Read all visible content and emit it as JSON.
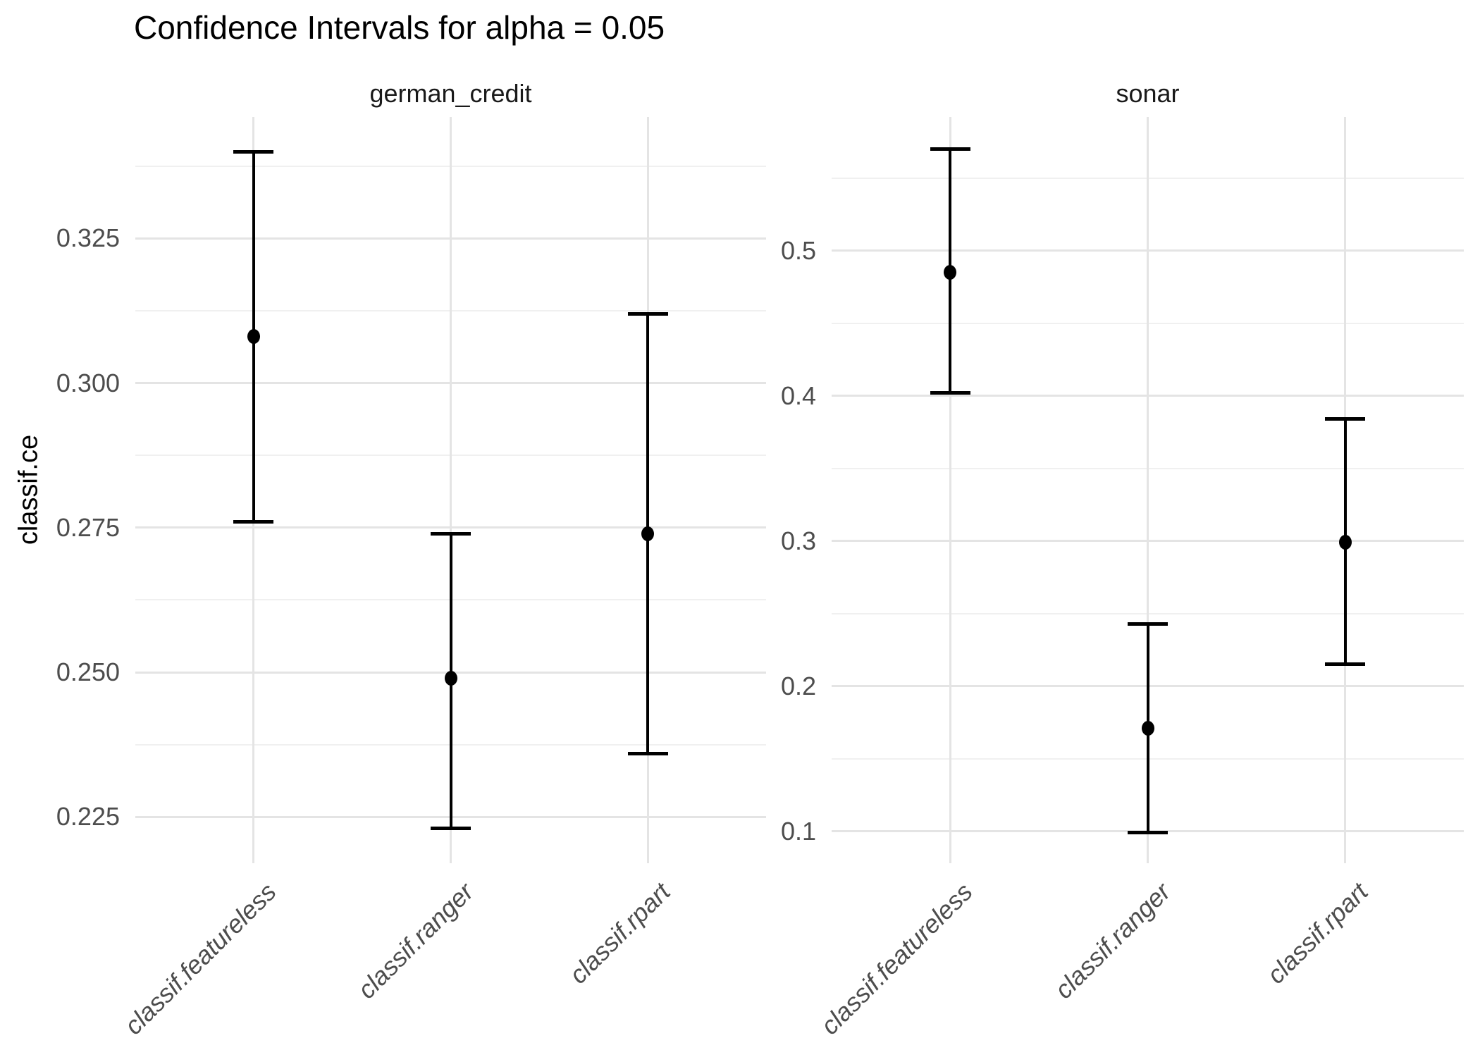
{
  "title": "Confidence Intervals for alpha = 0.05",
  "y_axis_title": "classif.ce",
  "colors": {
    "point_and_errorbar": "#000000",
    "grid_major": "#E4E4E4",
    "grid_minor": "#F0F0F0",
    "tick_label": "#4D4D4D",
    "strip_label": "#1A1A1A",
    "background": "#FFFFFF"
  },
  "chart_data": {
    "type": "errorbar",
    "title": "Confidence Intervals for alpha = 0.05",
    "xlabel": "",
    "ylabel": "classif.ce",
    "legend": "none",
    "grid": true,
    "facet_layout": "two panels side by side, free y scales",
    "categories": [
      "classif.featureless",
      "classif.ranger",
      "classif.rpart"
    ],
    "facets": [
      {
        "label": "german_credit",
        "ylim": [
          0.217,
          0.346
        ],
        "yticks": [
          {
            "value": 0.225,
            "label": "0.225"
          },
          {
            "value": 0.25,
            "label": "0.250"
          },
          {
            "value": 0.275,
            "label": "0.275"
          },
          {
            "value": 0.3,
            "label": "0.300"
          },
          {
            "value": 0.325,
            "label": "0.325"
          }
        ],
        "yticks_minor": [
          0.2375,
          0.2625,
          0.2875,
          0.3125,
          0.3375
        ],
        "series": [
          {
            "learner": "classif.featureless",
            "estimate": 0.308,
            "lower": 0.276,
            "upper": 0.34
          },
          {
            "learner": "classif.ranger",
            "estimate": 0.249,
            "lower": 0.223,
            "upper": 0.274
          },
          {
            "learner": "classif.rpart",
            "estimate": 0.274,
            "lower": 0.236,
            "upper": 0.312
          }
        ]
      },
      {
        "label": "sonar",
        "ylim": [
          0.078,
          0.592
        ],
        "yticks": [
          {
            "value": 0.1,
            "label": "0.1"
          },
          {
            "value": 0.2,
            "label": "0.2"
          },
          {
            "value": 0.3,
            "label": "0.3"
          },
          {
            "value": 0.4,
            "label": "0.4"
          },
          {
            "value": 0.5,
            "label": "0.5"
          }
        ],
        "yticks_minor": [
          0.15,
          0.25,
          0.35,
          0.45,
          0.55
        ],
        "series": [
          {
            "learner": "classif.featureless",
            "estimate": 0.485,
            "lower": 0.402,
            "upper": 0.57
          },
          {
            "learner": "classif.ranger",
            "estimate": 0.171,
            "lower": 0.099,
            "upper": 0.243
          },
          {
            "learner": "classif.rpart",
            "estimate": 0.299,
            "lower": 0.215,
            "upper": 0.384
          }
        ]
      }
    ]
  }
}
